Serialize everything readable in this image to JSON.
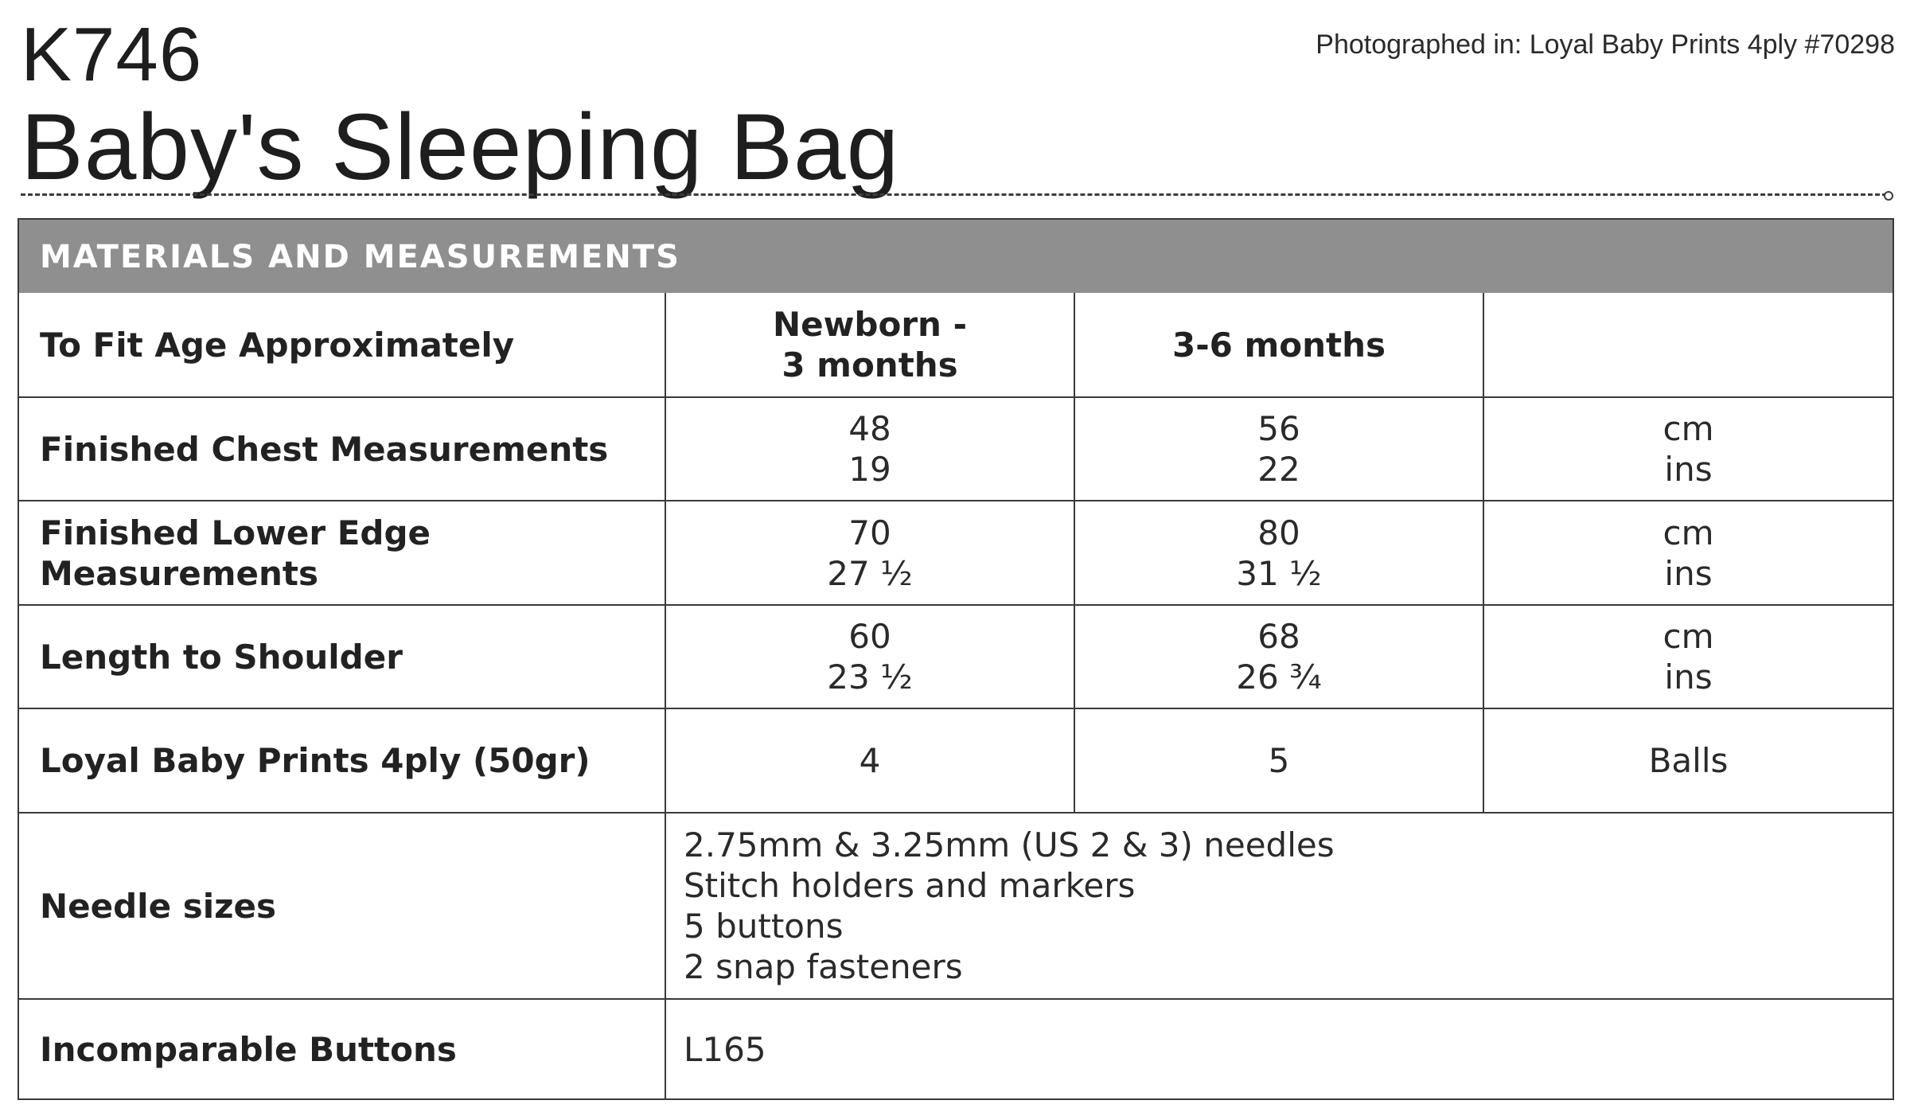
{
  "header": {
    "code": "K746",
    "title": "Baby's Sleeping Bag",
    "photographed_in": "Photographed in: Loyal Baby Prints 4ply #70298"
  },
  "section": {
    "title": "MATERIALS AND MEASUREMENTS"
  },
  "rows": {
    "age": {
      "label": "To Fit Age Approximately",
      "size1_line1": "Newborn -",
      "size1_line2": "3 months",
      "size2": "3-6 months",
      "unit": ""
    },
    "chest": {
      "label": "Finished Chest Measurements",
      "size1_cm": "48",
      "size1_ins": "19",
      "size2_cm": "56",
      "size2_ins": "22",
      "unit_cm": "cm",
      "unit_ins": "ins"
    },
    "lower_edge": {
      "label_line1": "Finished Lower Edge",
      "label_line2": "Measurements",
      "size1_cm": "70",
      "size1_ins": "27 ½",
      "size2_cm": "80",
      "size2_ins": "31 ½",
      "unit_cm": "cm",
      "unit_ins": "ins"
    },
    "length": {
      "label": "Length to Shoulder",
      "size1_cm": "60",
      "size1_ins": "23 ½",
      "size2_cm": "68",
      "size2_ins": "26 ¾",
      "unit_cm": "cm",
      "unit_ins": "ins"
    },
    "yarn": {
      "label": "Loyal Baby Prints 4ply (50gr)",
      "size1": "4",
      "size2": "5",
      "unit": "Balls"
    },
    "needles": {
      "label": "Needle sizes",
      "items": [
        "2.75mm & 3.25mm (US 2 & 3) needles",
        "Stitch holders and markers",
        "5 buttons",
        "2 snap fasteners"
      ]
    },
    "buttons": {
      "label": "Incomparable Buttons",
      "value": "L165"
    }
  }
}
